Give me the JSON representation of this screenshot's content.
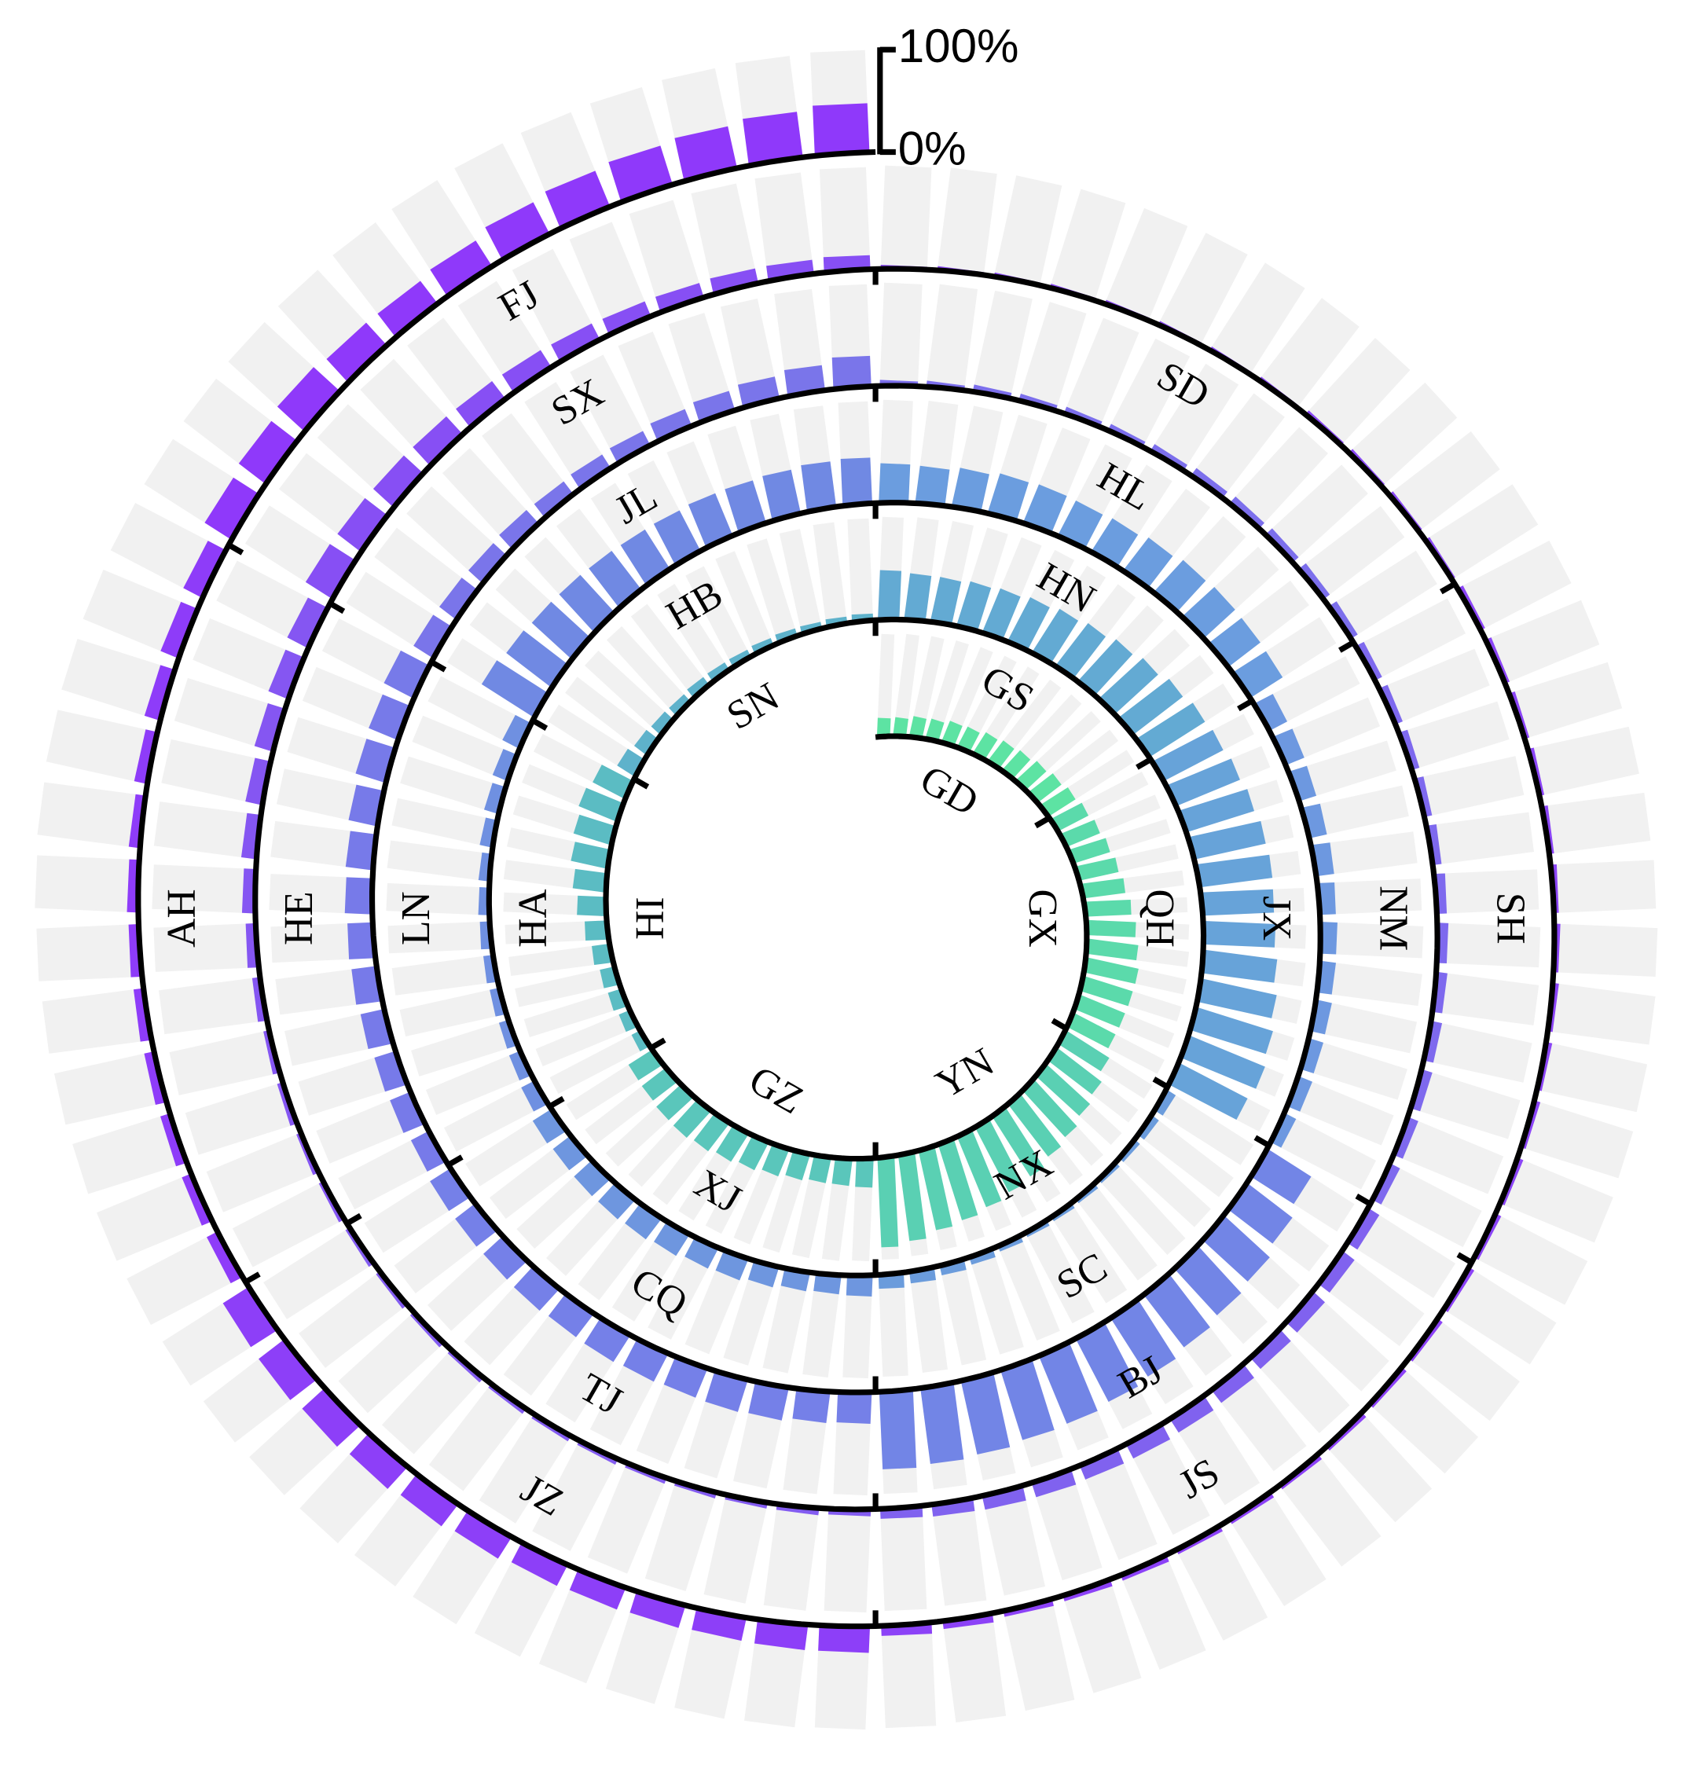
{
  "chart_data": {
    "type": "spiral",
    "ylim": [
      0,
      100
    ],
    "yticks": [
      {
        "value": 0,
        "label": "0%"
      },
      {
        "value": 100,
        "label": "100%"
      }
    ],
    "series": [
      {
        "name": "GD",
        "color": "#5de3a3",
        "values": [
          18,
          18,
          20,
          20,
          22,
          22,
          24,
          25,
          26,
          28,
          30,
          32
        ]
      },
      {
        "name": "GX",
        "color": "#5bdaab",
        "values": [
          34,
          36,
          38,
          40,
          42,
          45,
          48,
          50,
          52,
          50,
          48,
          46
        ]
      },
      {
        "name": "YN",
        "color": "#5ad0b3",
        "values": [
          50,
          55,
          58,
          62,
          65,
          70,
          72,
          75,
          78,
          80,
          85,
          88
        ]
      },
      {
        "name": "GZ",
        "color": "#5ac6bb",
        "values": [
          28,
          26,
          25,
          26,
          28,
          30,
          32,
          34,
          35,
          33,
          30,
          28
        ]
      },
      {
        "name": "HI",
        "color": "#5bbcc3",
        "values": [
          10,
          12,
          14,
          15,
          18,
          22,
          28,
          32,
          36,
          38,
          40,
          35
        ]
      },
      {
        "name": "SN",
        "color": "#5eb2cb",
        "values": [
          20,
          15,
          12,
          10,
          10,
          9,
          8,
          8,
          8,
          7,
          7,
          7
        ]
      },
      {
        "name": "GS",
        "color": "#63aad3",
        "values": [
          48,
          45,
          44,
          45,
          46,
          48,
          50,
          52,
          55,
          58,
          62,
          65
        ]
      },
      {
        "name": "QH",
        "color": "#67a3d9",
        "values": [
          66,
          68,
          70,
          72,
          72,
          70,
          70,
          72,
          75,
          78,
          80,
          75
        ]
      },
      {
        "name": "NX",
        "color": "#6b9cdc",
        "values": [
          10,
          8,
          6,
          5,
          5,
          5,
          5,
          6,
          8,
          10,
          12,
          14
        ]
      },
      {
        "name": "XJ",
        "color": "#6e96df",
        "values": [
          20,
          18,
          18,
          20,
          22,
          22,
          24,
          25,
          25,
          24,
          22,
          22
        ]
      },
      {
        "name": "HA",
        "color": "#6f90e1",
        "values": [
          15,
          12,
          10,
          10,
          10,
          10,
          10,
          10,
          12,
          14,
          15,
          18
        ]
      },
      {
        "name": "HB",
        "color": "#7089e3",
        "values": [
          60,
          55,
          52,
          50,
          48,
          46,
          45,
          45,
          44,
          44,
          45,
          45
        ]
      },
      {
        "name": "HN",
        "color": "#6b9ddf",
        "values": [
          38,
          36,
          38,
          40,
          40,
          38,
          38,
          40,
          42,
          42,
          40,
          38
        ]
      },
      {
        "name": "JX",
        "color": "#6d98e0",
        "values": [
          20,
          20,
          18,
          18,
          18,
          16,
          16,
          15,
          15,
          14,
          14,
          12
        ]
      },
      {
        "name": "SC",
        "color": "#7285e6",
        "values": [
          50,
          55,
          60,
          62,
          65,
          68,
          70,
          72,
          72,
          74,
          75,
          76
        ]
      },
      {
        "name": "CQ",
        "color": "#7580e8",
        "values": [
          30,
          30,
          32,
          32,
          30,
          30,
          30,
          28,
          28,
          26,
          25,
          24
        ]
      },
      {
        "name": "LN",
        "color": "#777ae9",
        "values": [
          20,
          22,
          22,
          24,
          25,
          25,
          26,
          26,
          28,
          30,
          30,
          32
        ]
      },
      {
        "name": "JL",
        "color": "#7a75ea",
        "values": [
          22,
          20,
          18,
          18,
          16,
          16,
          16,
          18,
          20,
          22,
          25,
          30
        ]
      },
      {
        "name": "HL",
        "color": "#7c6fec",
        "values": [
          5,
          5,
          6,
          6,
          6,
          6,
          7,
          8,
          8,
          8,
          8,
          8
        ]
      },
      {
        "name": "NM",
        "color": "#7e69ee",
        "values": [
          8,
          8,
          8,
          8,
          9,
          10,
          10,
          10,
          10,
          10,
          10,
          10
        ]
      },
      {
        "name": "BJ",
        "color": "#8062ef",
        "values": [
          12,
          14,
          15,
          15,
          16,
          16,
          16,
          15,
          15,
          14,
          12,
          10
        ]
      },
      {
        "name": "TJ",
        "color": "#835cf1",
        "values": [
          6,
          6,
          5,
          5,
          5,
          5,
          5,
          5,
          5,
          5,
          5,
          5
        ]
      },
      {
        "name": "HE",
        "color": "#8556f2",
        "values": [
          5,
          5,
          6,
          6,
          8,
          10,
          12,
          14,
          16,
          18,
          20,
          22
        ]
      },
      {
        "name": "SX",
        "color": "#874ff4",
        "values": [
          30,
          28,
          26,
          24,
          22,
          20,
          18,
          16,
          15,
          15,
          14,
          14
        ]
      },
      {
        "name": "SD",
        "color": "#8a49f5",
        "values": [
          3,
          3,
          3,
          3,
          3,
          3,
          3,
          3,
          4,
          4,
          4,
          4
        ]
      },
      {
        "name": "SH",
        "color": "#8b45f6",
        "values": [
          5,
          5,
          5,
          5,
          5,
          5,
          5,
          5,
          5,
          5,
          5,
          5
        ]
      },
      {
        "name": "JS",
        "color": "#8c42f7",
        "values": [
          5,
          5,
          5,
          5,
          5,
          5,
          5,
          6,
          6,
          6,
          8,
          10
        ]
      },
      {
        "name": "JZ",
        "color": "#8d3ff8",
        "values": [
          25,
          24,
          22,
          22,
          22,
          22,
          24,
          26,
          28,
          30,
          32,
          30
        ]
      },
      {
        "name": "AH",
        "color": "#8e3cf9",
        "values": [
          12,
          10,
          10,
          10,
          10,
          10,
          10,
          10,
          12,
          15,
          18,
          20
        ]
      },
      {
        "name": "FJ",
        "color": "#8f39fa",
        "values": [
          30,
          32,
          35,
          30,
          28,
          30,
          35,
          38,
          40,
          42,
          45,
          48
        ]
      }
    ]
  }
}
